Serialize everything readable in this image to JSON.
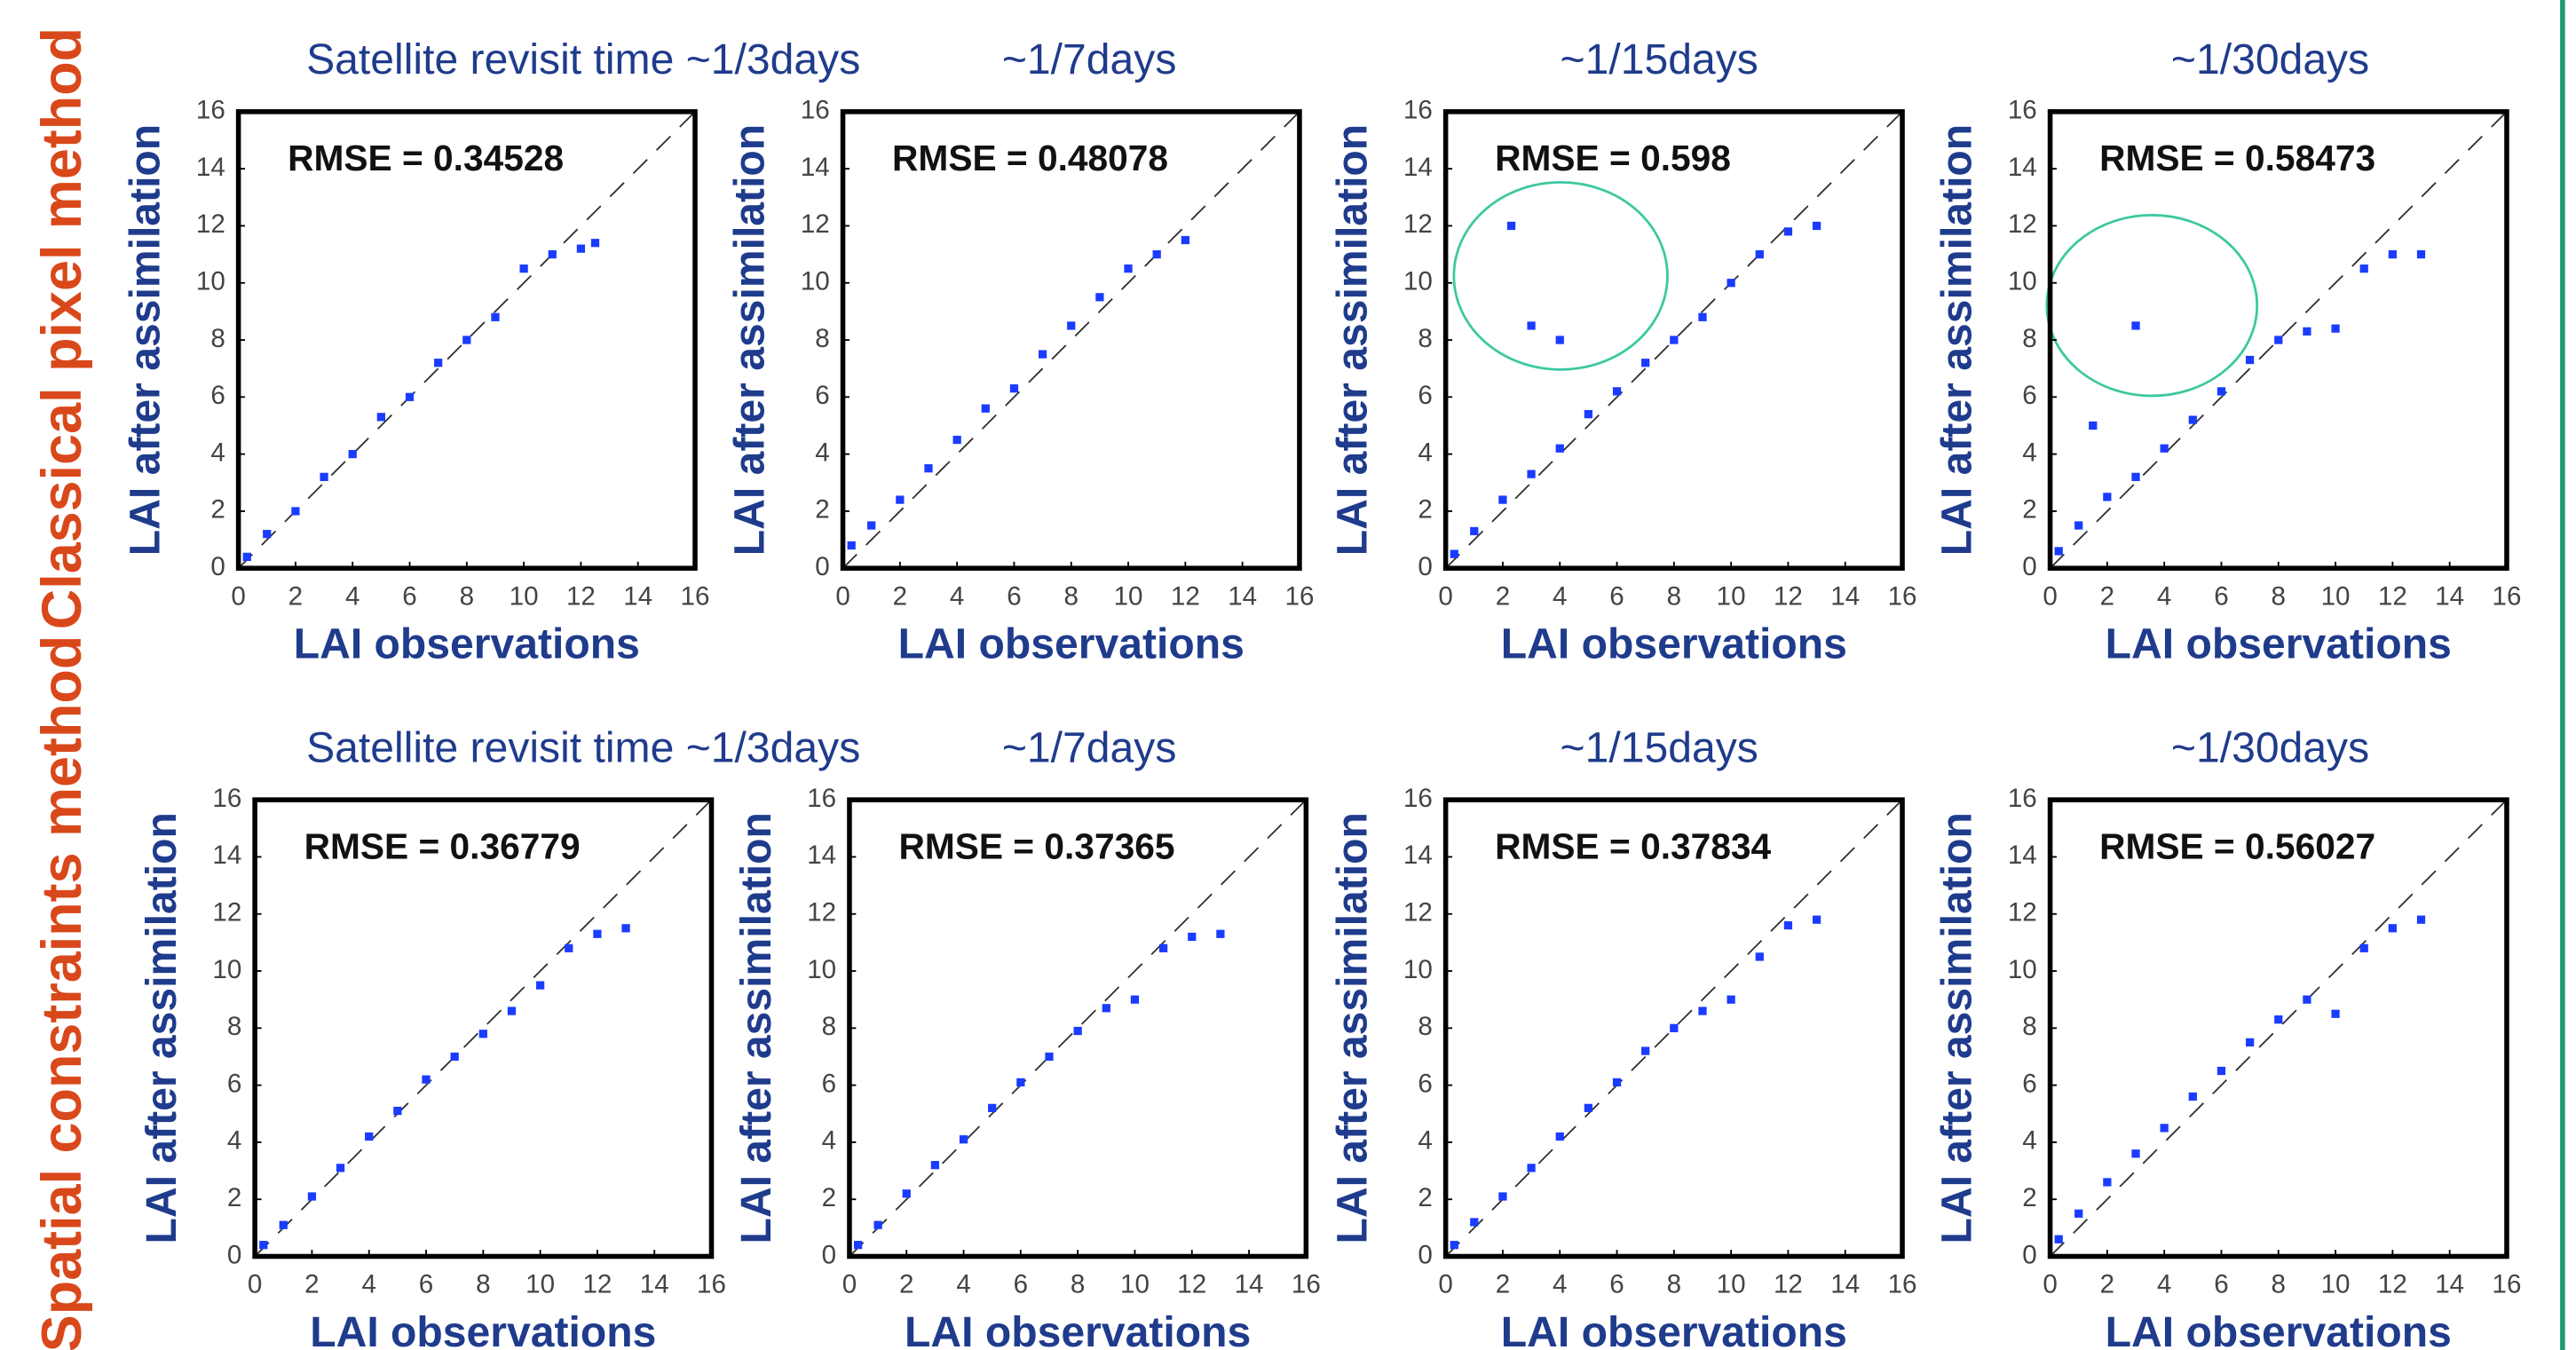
{
  "row_labels": [
    "Classical pixel method",
    "Spatial constraints method"
  ],
  "chart_data": [
    {
      "type": "scatter",
      "title": "Satellite revisit time ~1/3days",
      "annotation": "RMSE = 0.34528",
      "xlabel": "LAI observations",
      "ylabel": "LAI after assimilation",
      "color": "#1a3cff",
      "xlim": [
        0,
        16
      ],
      "ylim": [
        0,
        16
      ],
      "xticks": [
        0,
        2,
        4,
        6,
        8,
        10,
        12,
        14,
        16
      ],
      "yticks": [
        0,
        2,
        4,
        6,
        8,
        10,
        12,
        14,
        16
      ],
      "x": [
        0.3,
        1,
        2,
        3,
        4,
        5,
        6,
        7,
        8,
        9,
        10,
        11,
        12,
        12.5
      ],
      "y": [
        0.4,
        1.2,
        2,
        3.2,
        4,
        5.3,
        6,
        7.2,
        8,
        8.8,
        10.5,
        11,
        11.2,
        11.4
      ]
    },
    {
      "type": "scatter",
      "title": "~1/7days",
      "annotation": "RMSE = 0.48078",
      "xlabel": "LAI observations",
      "ylabel": "LAI after assimilation",
      "color": "#1a3cff",
      "xlim": [
        0,
        16
      ],
      "ylim": [
        0,
        16
      ],
      "xticks": [
        0,
        2,
        4,
        6,
        8,
        10,
        12,
        14,
        16
      ],
      "yticks": [
        0,
        2,
        4,
        6,
        8,
        10,
        12,
        14,
        16
      ],
      "x": [
        0.3,
        1,
        2,
        3,
        4,
        5,
        6,
        7,
        8,
        9,
        10,
        11,
        12
      ],
      "y": [
        0.8,
        1.5,
        2.4,
        3.5,
        4.5,
        5.6,
        6.3,
        7.5,
        8.5,
        9.5,
        10.5,
        11,
        11.5
      ]
    },
    {
      "type": "scatter",
      "title": "~1/15days",
      "annotation": "RMSE = 0.598",
      "xlabel": "LAI observations",
      "ylabel": "LAI after assimilation",
      "color": "#1a3cff",
      "xlim": [
        0,
        16
      ],
      "ylim": [
        0,
        16
      ],
      "xticks": [
        0,
        2,
        4,
        6,
        8,
        10,
        12,
        14,
        16
      ],
      "yticks": [
        0,
        2,
        4,
        6,
        8,
        10,
        12,
        14,
        16
      ],
      "x": [
        0.3,
        1,
        2,
        3,
        4,
        5,
        6,
        7,
        8,
        9,
        10,
        11,
        12,
        13,
        2.3,
        3,
        4
      ],
      "y": [
        0.5,
        1.3,
        2.4,
        3.3,
        4.2,
        5.4,
        6.2,
        7.2,
        8,
        8.8,
        10,
        11,
        11.8,
        12,
        12,
        8.5,
        8
      ]
    },
    {
      "type": "scatter",
      "title": "~1/30days",
      "annotation": "RMSE = 0.58473",
      "xlabel": "LAI observations",
      "ylabel": "LAI after assimilation",
      "color": "#1a3cff",
      "xlim": [
        0,
        16
      ],
      "ylim": [
        0,
        16
      ],
      "xticks": [
        0,
        2,
        4,
        6,
        8,
        10,
        12,
        14,
        16
      ],
      "yticks": [
        0,
        2,
        4,
        6,
        8,
        10,
        12,
        14,
        16
      ],
      "x": [
        0.3,
        1,
        2,
        3,
        4,
        5,
        6,
        7,
        8,
        9,
        10,
        11,
        12,
        13,
        3,
        1.5
      ],
      "y": [
        0.6,
        1.5,
        2.5,
        3.2,
        4.2,
        5.2,
        6.2,
        7.3,
        8,
        8.3,
        8.4,
        10.5,
        11,
        11,
        8.5,
        5
      ]
    },
    {
      "type": "scatter",
      "title": "Satellite revisit time ~1/3days",
      "annotation": "RMSE = 0.36779",
      "xlabel": "LAI observations",
      "ylabel": "LAI after assimilation",
      "color": "#1a3cff",
      "xlim": [
        0,
        16
      ],
      "ylim": [
        0,
        16
      ],
      "xticks": [
        0,
        2,
        4,
        6,
        8,
        10,
        12,
        14,
        16
      ],
      "yticks": [
        0,
        2,
        4,
        6,
        8,
        10,
        12,
        14,
        16
      ],
      "x": [
        0.3,
        1,
        2,
        3,
        4,
        5,
        6,
        7,
        8,
        9,
        10,
        11,
        12,
        13
      ],
      "y": [
        0.4,
        1.1,
        2.1,
        3.1,
        4.2,
        5.1,
        6.2,
        7,
        7.8,
        8.6,
        9.5,
        10.8,
        11.3,
        11.5
      ]
    },
    {
      "type": "scatter",
      "title": "~1/7days",
      "annotation": "RMSE = 0.37365",
      "xlabel": "LAI observations",
      "ylabel": "LAI after assimilation",
      "color": "#1a3cff",
      "xlim": [
        0,
        16
      ],
      "ylim": [
        0,
        16
      ],
      "xticks": [
        0,
        2,
        4,
        6,
        8,
        10,
        12,
        14,
        16
      ],
      "yticks": [
        0,
        2,
        4,
        6,
        8,
        10,
        12,
        14,
        16
      ],
      "x": [
        0.3,
        1,
        2,
        3,
        4,
        5,
        6,
        7,
        8,
        9,
        10,
        11,
        12,
        13
      ],
      "y": [
        0.4,
        1.1,
        2.2,
        3.2,
        4.1,
        5.2,
        6.1,
        7,
        7.9,
        8.7,
        9,
        10.8,
        11.2,
        11.3
      ]
    },
    {
      "type": "scatter",
      "title": "~1/15days",
      "annotation": "RMSE = 0.37834",
      "xlabel": "LAI observations",
      "ylabel": "LAI after assimilation",
      "color": "#1a3cff",
      "xlim": [
        0,
        16
      ],
      "ylim": [
        0,
        16
      ],
      "xticks": [
        0,
        2,
        4,
        6,
        8,
        10,
        12,
        14,
        16
      ],
      "yticks": [
        0,
        2,
        4,
        6,
        8,
        10,
        12,
        14,
        16
      ],
      "x": [
        0.3,
        1,
        2,
        3,
        4,
        5,
        6,
        7,
        8,
        9,
        10,
        11,
        12,
        13
      ],
      "y": [
        0.4,
        1.2,
        2.1,
        3.1,
        4.2,
        5.2,
        6.1,
        7.2,
        8,
        8.6,
        9,
        10.5,
        11.6,
        11.8
      ]
    },
    {
      "type": "scatter",
      "title": "~1/30days",
      "annotation": "RMSE = 0.56027",
      "xlabel": "LAI observations",
      "ylabel": "LAI after assimilation",
      "color": "#1a3cff",
      "xlim": [
        0,
        16
      ],
      "ylim": [
        0,
        16
      ],
      "xticks": [
        0,
        2,
        4,
        6,
        8,
        10,
        12,
        14,
        16
      ],
      "yticks": [
        0,
        2,
        4,
        6,
        8,
        10,
        12,
        14,
        16
      ],
      "x": [
        0.3,
        1,
        2,
        3,
        4,
        5,
        6,
        7,
        8,
        9,
        10,
        11,
        12,
        13
      ],
      "y": [
        0.6,
        1.5,
        2.6,
        3.6,
        4.5,
        5.6,
        6.5,
        7.5,
        8.3,
        9,
        8.5,
        10.8,
        11.5,
        11.8
      ]
    }
  ]
}
